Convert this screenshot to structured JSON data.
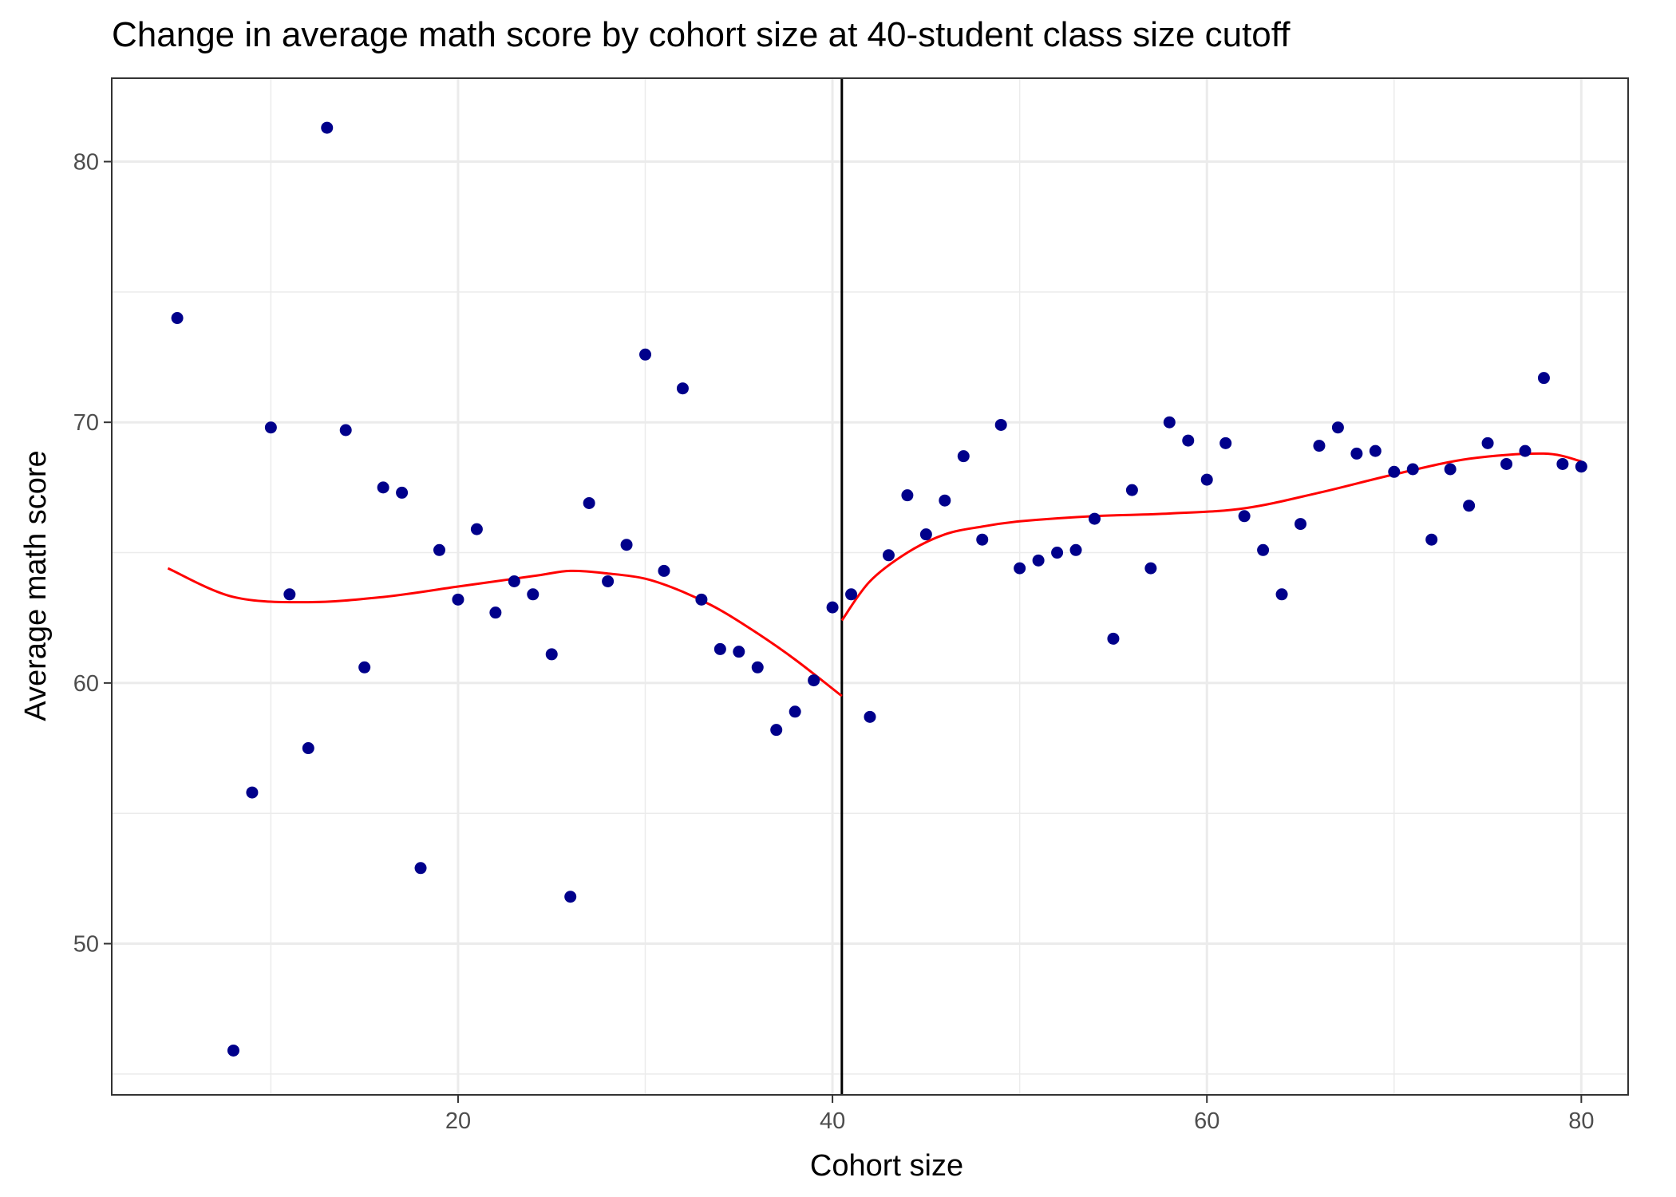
{
  "chart_data": {
    "type": "scatter",
    "title": "Change in average math score by cohort size at 40-student class size cutoff",
    "xlabel": "Cohort size",
    "ylabel": "Average math score",
    "xlim": [
      1.5,
      82.5
    ],
    "ylim": [
      44.2,
      83.2
    ],
    "x_ticks": [
      20,
      40,
      60,
      80
    ],
    "y_ticks": [
      50,
      60,
      70,
      80
    ],
    "x_minor_ticks": [
      10,
      30,
      50,
      70
    ],
    "y_minor_ticks": [
      45,
      55,
      65,
      75
    ],
    "grid": true,
    "legend": "none",
    "cutoff_x": 40.5,
    "colors": {
      "points": "#00008b",
      "smooth": "#ff0000",
      "cutoff": "#000000",
      "grid": "#ebebeb",
      "panel_border": "#333333"
    },
    "series": [
      {
        "kind": "points",
        "x": [
          5,
          8,
          9,
          10,
          11,
          12,
          13,
          14,
          15,
          16,
          17,
          18,
          19,
          20,
          21,
          22,
          23,
          24,
          25,
          26,
          27,
          28,
          29,
          30,
          31,
          32,
          33,
          34,
          35,
          36,
          37,
          38,
          39,
          40,
          41,
          42,
          43,
          44,
          45,
          46,
          47,
          48,
          49,
          50,
          51,
          52,
          53,
          54,
          55,
          56,
          57,
          58,
          59,
          60,
          61,
          62,
          63,
          64,
          65,
          66,
          67,
          68,
          69,
          70,
          71,
          72,
          73,
          74,
          75,
          76,
          77,
          78,
          79,
          80
        ],
        "y": [
          74.0,
          45.9,
          55.8,
          69.8,
          63.4,
          57.5,
          81.3,
          69.7,
          60.6,
          67.5,
          67.3,
          52.9,
          65.1,
          63.2,
          65.9,
          62.7,
          63.9,
          63.4,
          61.1,
          51.8,
          66.9,
          63.9,
          65.3,
          72.6,
          64.3,
          71.3,
          63.2,
          61.3,
          61.2,
          60.6,
          58.2,
          58.9,
          60.1,
          62.9,
          63.4,
          58.7,
          64.9,
          67.2,
          65.7,
          67.0,
          68.7,
          65.5,
          69.9,
          64.4,
          64.7,
          65.0,
          65.1,
          66.3,
          61.7,
          67.4,
          64.4,
          70.0,
          69.3,
          67.8,
          69.2,
          66.4,
          65.1,
          63.4,
          66.1,
          69.1,
          69.8,
          68.8,
          68.9,
          68.1,
          68.2,
          65.5,
          68.2,
          66.8,
          69.2,
          68.4,
          68.9,
          71.7,
          68.4,
          68.3
        ]
      },
      {
        "kind": "smooth-left",
        "x": [
          4.5,
          8,
          12,
          16,
          20,
          24,
          26,
          28,
          30,
          32,
          34,
          36,
          38,
          40.5
        ],
        "y": [
          64.4,
          63.3,
          63.1,
          63.3,
          63.7,
          64.1,
          64.3,
          64.2,
          64.0,
          63.5,
          62.8,
          61.9,
          60.9,
          59.5
        ]
      },
      {
        "kind": "smooth-right",
        "x": [
          40.5,
          42,
          44,
          46,
          48,
          50,
          54,
          58,
          62,
          66,
          70,
          74,
          78,
          80
        ],
        "y": [
          62.4,
          63.9,
          65.0,
          65.7,
          66.0,
          66.2,
          66.4,
          66.5,
          66.7,
          67.3,
          68.0,
          68.6,
          68.8,
          68.5
        ]
      }
    ]
  }
}
